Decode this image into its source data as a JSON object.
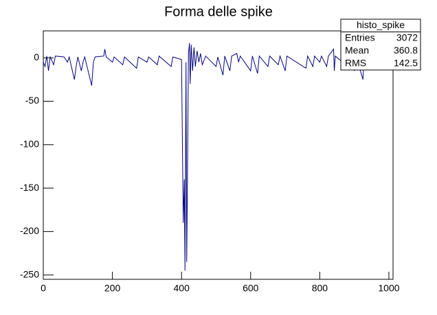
{
  "chart_data": {
    "type": "line",
    "title": "Forma delle spike",
    "series": [
      {
        "name": "histo_spike",
        "color": "#000080",
        "x": [
          0,
          5,
          10,
          15,
          20,
          30,
          35,
          60,
          70,
          75,
          90,
          95,
          100,
          110,
          115,
          120,
          140,
          145,
          150,
          175,
          178,
          182,
          200,
          205,
          230,
          235,
          270,
          275,
          300,
          305,
          330,
          335,
          370,
          375,
          400,
          405,
          408,
          410,
          413,
          415,
          418,
          420,
          423,
          425,
          428,
          432,
          436,
          440,
          445,
          450,
          455,
          460,
          470,
          500,
          505,
          520,
          525,
          540,
          545,
          560,
          565,
          570,
          600,
          605,
          620,
          625,
          650,
          655,
          680,
          685,
          700,
          705,
          760,
          765,
          780,
          785,
          800,
          805,
          820,
          825,
          840,
          842,
          845,
          880,
          885,
          900,
          905,
          925,
          928,
          960,
          965,
          1000,
          1010
        ],
        "values": [
          -5,
          -10,
          2,
          -15,
          1,
          -8,
          2,
          1,
          -5,
          1,
          -25,
          -10,
          1,
          -15,
          -5,
          1,
          -32,
          -5,
          1,
          2,
          10,
          1,
          -5,
          1,
          -8,
          1,
          -12,
          1,
          -5,
          1,
          -8,
          2,
          -10,
          1,
          -2,
          -190,
          -140,
          -245,
          -5,
          -235,
          -100,
          5,
          17,
          -30,
          15,
          -15,
          12,
          -10,
          8,
          -5,
          5,
          -8,
          2,
          -10,
          1,
          -20,
          2,
          -15,
          2,
          5,
          -5,
          2,
          -15,
          2,
          -18,
          2,
          -10,
          2,
          -8,
          2,
          -15,
          2,
          -12,
          2,
          -10,
          2,
          -5,
          2,
          -10,
          2,
          10,
          -15,
          2,
          -10,
          2,
          -15,
          2,
          -25,
          2,
          -10,
          2,
          2,
          1
        ]
      }
    ],
    "xlim": [
      0,
      1012
    ],
    "xticks": [
      0,
      200,
      400,
      600,
      800,
      1000
    ],
    "ylim": [
      -255,
      31
    ],
    "yticks": [
      -250,
      -200,
      -150,
      -100,
      -50,
      0
    ],
    "stats": {
      "title": "histo_spike",
      "rows": [
        [
          "Entries",
          3072
        ],
        [
          "Mean",
          360.8
        ],
        [
          "RMS",
          142.5
        ]
      ]
    }
  }
}
